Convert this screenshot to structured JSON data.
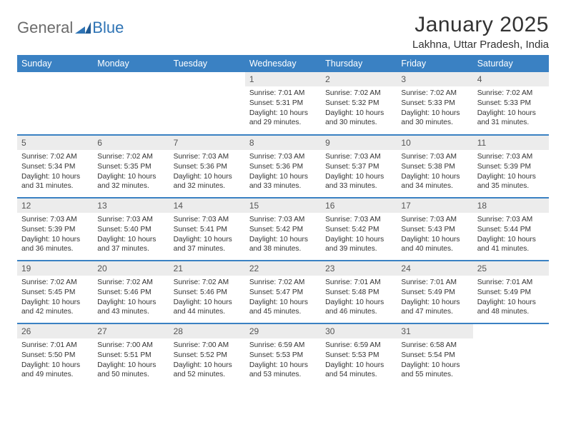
{
  "logo": {
    "general": "General",
    "blue": "Blue"
  },
  "title": "January 2025",
  "location": "Lakhna, Uttar Pradesh, India",
  "colors": {
    "header_bg": "#3a81c3",
    "header_fg": "#ffffff",
    "daynum_bg": "#ececec",
    "border": "#3a81c3",
    "logo_gray": "#6b6b6b",
    "logo_blue": "#2f74b5"
  },
  "weekdays": [
    "Sunday",
    "Monday",
    "Tuesday",
    "Wednesday",
    "Thursday",
    "Friday",
    "Saturday"
  ],
  "weeks": [
    [
      {
        "n": "",
        "sr": "",
        "ss": "",
        "dl": "",
        "empty": true
      },
      {
        "n": "",
        "sr": "",
        "ss": "",
        "dl": "",
        "empty": true
      },
      {
        "n": "",
        "sr": "",
        "ss": "",
        "dl": "",
        "empty": true
      },
      {
        "n": "1",
        "sr": "7:01 AM",
        "ss": "5:31 PM",
        "dl": "10 hours and 29 minutes."
      },
      {
        "n": "2",
        "sr": "7:02 AM",
        "ss": "5:32 PM",
        "dl": "10 hours and 30 minutes."
      },
      {
        "n": "3",
        "sr": "7:02 AM",
        "ss": "5:33 PM",
        "dl": "10 hours and 30 minutes."
      },
      {
        "n": "4",
        "sr": "7:02 AM",
        "ss": "5:33 PM",
        "dl": "10 hours and 31 minutes."
      }
    ],
    [
      {
        "n": "5",
        "sr": "7:02 AM",
        "ss": "5:34 PM",
        "dl": "10 hours and 31 minutes."
      },
      {
        "n": "6",
        "sr": "7:02 AM",
        "ss": "5:35 PM",
        "dl": "10 hours and 32 minutes."
      },
      {
        "n": "7",
        "sr": "7:03 AM",
        "ss": "5:36 PM",
        "dl": "10 hours and 32 minutes."
      },
      {
        "n": "8",
        "sr": "7:03 AM",
        "ss": "5:36 PM",
        "dl": "10 hours and 33 minutes."
      },
      {
        "n": "9",
        "sr": "7:03 AM",
        "ss": "5:37 PM",
        "dl": "10 hours and 33 minutes."
      },
      {
        "n": "10",
        "sr": "7:03 AM",
        "ss": "5:38 PM",
        "dl": "10 hours and 34 minutes."
      },
      {
        "n": "11",
        "sr": "7:03 AM",
        "ss": "5:39 PM",
        "dl": "10 hours and 35 minutes."
      }
    ],
    [
      {
        "n": "12",
        "sr": "7:03 AM",
        "ss": "5:39 PM",
        "dl": "10 hours and 36 minutes."
      },
      {
        "n": "13",
        "sr": "7:03 AM",
        "ss": "5:40 PM",
        "dl": "10 hours and 37 minutes."
      },
      {
        "n": "14",
        "sr": "7:03 AM",
        "ss": "5:41 PM",
        "dl": "10 hours and 37 minutes."
      },
      {
        "n": "15",
        "sr": "7:03 AM",
        "ss": "5:42 PM",
        "dl": "10 hours and 38 minutes."
      },
      {
        "n": "16",
        "sr": "7:03 AM",
        "ss": "5:42 PM",
        "dl": "10 hours and 39 minutes."
      },
      {
        "n": "17",
        "sr": "7:03 AM",
        "ss": "5:43 PM",
        "dl": "10 hours and 40 minutes."
      },
      {
        "n": "18",
        "sr": "7:03 AM",
        "ss": "5:44 PM",
        "dl": "10 hours and 41 minutes."
      }
    ],
    [
      {
        "n": "19",
        "sr": "7:02 AM",
        "ss": "5:45 PM",
        "dl": "10 hours and 42 minutes."
      },
      {
        "n": "20",
        "sr": "7:02 AM",
        "ss": "5:46 PM",
        "dl": "10 hours and 43 minutes."
      },
      {
        "n": "21",
        "sr": "7:02 AM",
        "ss": "5:46 PM",
        "dl": "10 hours and 44 minutes."
      },
      {
        "n": "22",
        "sr": "7:02 AM",
        "ss": "5:47 PM",
        "dl": "10 hours and 45 minutes."
      },
      {
        "n": "23",
        "sr": "7:01 AM",
        "ss": "5:48 PM",
        "dl": "10 hours and 46 minutes."
      },
      {
        "n": "24",
        "sr": "7:01 AM",
        "ss": "5:49 PM",
        "dl": "10 hours and 47 minutes."
      },
      {
        "n": "25",
        "sr": "7:01 AM",
        "ss": "5:49 PM",
        "dl": "10 hours and 48 minutes."
      }
    ],
    [
      {
        "n": "26",
        "sr": "7:01 AM",
        "ss": "5:50 PM",
        "dl": "10 hours and 49 minutes."
      },
      {
        "n": "27",
        "sr": "7:00 AM",
        "ss": "5:51 PM",
        "dl": "10 hours and 50 minutes."
      },
      {
        "n": "28",
        "sr": "7:00 AM",
        "ss": "5:52 PM",
        "dl": "10 hours and 52 minutes."
      },
      {
        "n": "29",
        "sr": "6:59 AM",
        "ss": "5:53 PM",
        "dl": "10 hours and 53 minutes."
      },
      {
        "n": "30",
        "sr": "6:59 AM",
        "ss": "5:53 PM",
        "dl": "10 hours and 54 minutes."
      },
      {
        "n": "31",
        "sr": "6:58 AM",
        "ss": "5:54 PM",
        "dl": "10 hours and 55 minutes."
      },
      {
        "n": "",
        "sr": "",
        "ss": "",
        "dl": "",
        "empty": true
      }
    ]
  ],
  "labels": {
    "sunrise": "Sunrise:",
    "sunset": "Sunset:",
    "daylight": "Daylight:"
  }
}
